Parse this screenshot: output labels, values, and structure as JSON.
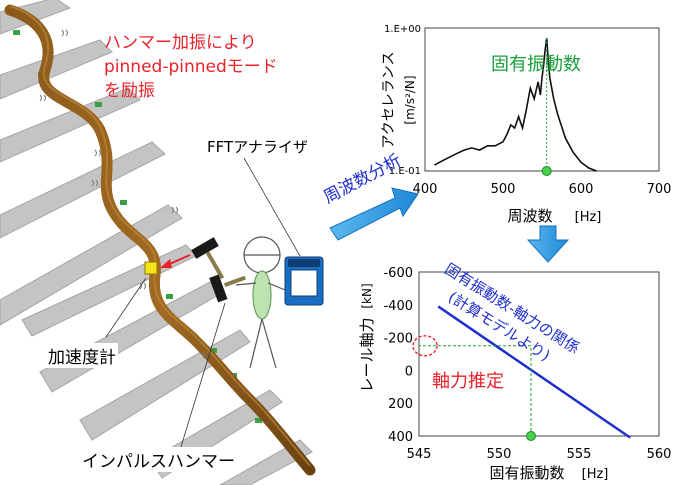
{
  "notes": {
    "hammer_excitation_lines": [
      "ハンマー加振により",
      "pinned-pinnedモード",
      "を励振"
    ],
    "fft_analyzer": "FFTアナライザ",
    "accelerometer": "加速度計",
    "impulse_hammer": "インパルスハンマー",
    "frequency_analysis": "周波数分析",
    "natural_frequency": "固有振動数",
    "relation_lines": [
      "固有振動数-軸力の関係",
      "(計算モデルより)"
    ],
    "axial_force_estimation": "軸力推定"
  },
  "chart_data": [
    {
      "type": "line",
      "ylabel": "アクセレランス",
      "yunit": "[m/s²/N]",
      "xlabel": "周波数",
      "xunit": "[Hz]",
      "xlim": [
        400,
        700
      ],
      "xticks": [
        "400",
        "500",
        "600",
        "700"
      ],
      "yscale": "log",
      "yticks": [
        "1.E+00",
        "1.E-01"
      ],
      "peak_x": 556,
      "x": [
        412,
        425,
        440,
        450,
        460,
        470,
        480,
        490,
        500,
        505,
        510,
        515,
        520,
        525,
        530,
        535,
        540,
        545,
        548,
        550,
        552,
        554,
        556,
        558,
        560,
        565,
        570,
        580,
        590,
        600,
        610,
        620
      ],
      "y": [
        0.11,
        0.12,
        0.132,
        0.14,
        0.145,
        0.14,
        0.15,
        0.15,
        0.16,
        0.18,
        0.21,
        0.2,
        0.24,
        0.2,
        0.27,
        0.38,
        0.32,
        0.42,
        0.34,
        0.45,
        0.55,
        0.7,
        0.85,
        0.6,
        0.45,
        0.32,
        0.25,
        0.17,
        0.135,
        0.115,
        0.105,
        0.1
      ]
    },
    {
      "type": "line",
      "ylabel": "レール軸力",
      "yunit": "[kN]",
      "xlabel": "固有振動数",
      "xunit": "[Hz]",
      "xlim": [
        545,
        560
      ],
      "ylim": [
        -600,
        400
      ],
      "xticks": [
        "545",
        "550",
        "555",
        "560"
      ],
      "yticks": [
        "-600",
        "-400",
        "-200",
        "0",
        "200",
        "400"
      ],
      "x": [
        546.2,
        558.2
      ],
      "y": [
        -390,
        410
      ],
      "estimate": {
        "x": 552,
        "y": -150
      }
    }
  ]
}
